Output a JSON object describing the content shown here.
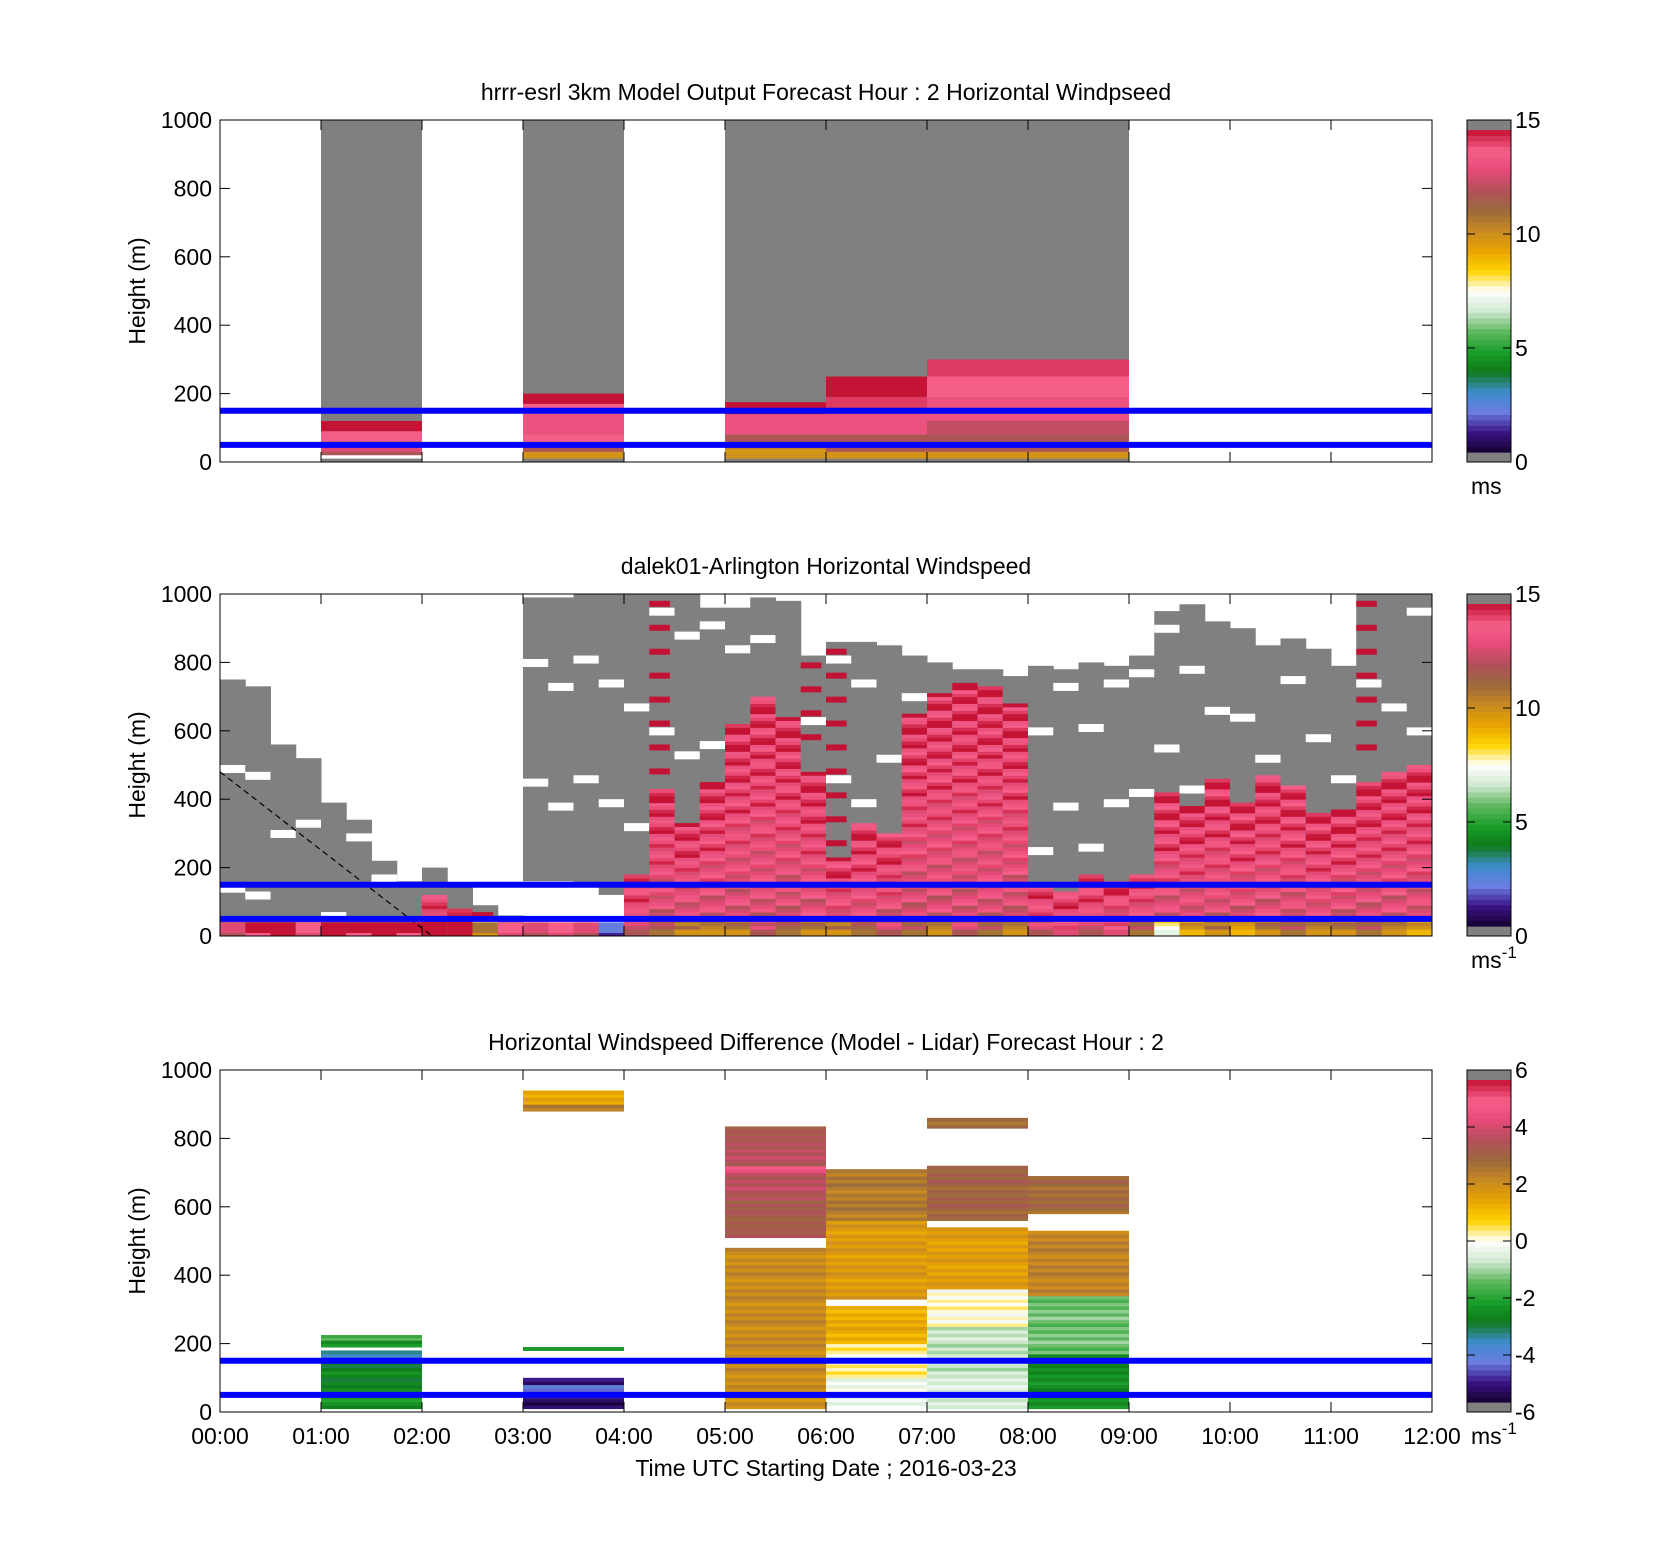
{
  "figure": {
    "xlabel": "Time UTC  Starting Date ; 2016-03-23"
  },
  "colors": {
    "reference_line": "#0000ff",
    "no_data": "#808080",
    "speed_colormap": [
      "#808080",
      "#14002e",
      "#3b1486",
      "#6b7de0",
      "#3d8ccb",
      "#0f7a1a",
      "#1a9e2a",
      "#5fb75f",
      "#cfe8cf",
      "#ffffff",
      "#ffd400",
      "#e8a400",
      "#c88a22",
      "#9b6a3d",
      "#b0505a",
      "#e64a78",
      "#f55f8a",
      "#c41234",
      "#808080"
    ],
    "diff_colormap": [
      "#808080",
      "#14002e",
      "#3b1486",
      "#6b7de0",
      "#3d8ccb",
      "#0f7a1a",
      "#1a9e2a",
      "#5fb75f",
      "#cfe8cf",
      "#ffffff",
      "#ffd400",
      "#e8a400",
      "#c88a22",
      "#9b6a3d",
      "#b0505a",
      "#e64a78",
      "#f55f8a",
      "#c41234",
      "#808080"
    ]
  },
  "chart_data": [
    {
      "type": "heatmap",
      "title": "hrrr-esrl 3km Model Output   Forecast Hour : 2 Horizontal Windpseed",
      "ylabel": "Height (m)",
      "xlabel": "",
      "x_ticks": [
        "00:00",
        "01:00",
        "02:00",
        "03:00",
        "04:00",
        "05:00",
        "06:00",
        "07:00",
        "08:00",
        "09:00",
        "10:00",
        "11:00",
        "12:00"
      ],
      "show_x_tick_labels": false,
      "xlim": [
        0,
        12
      ],
      "ylim": [
        0,
        1000
      ],
      "y_ticks": [
        0,
        200,
        400,
        600,
        800,
        1000
      ],
      "reference_lines_m": [
        50,
        150
      ],
      "colorbar": {
        "min": 0,
        "max": 15,
        "ticks": [
          0,
          5,
          10,
          15
        ],
        "unit": "ms",
        "unit_superscript": ""
      },
      "blocks": [
        {
          "t0": 1,
          "t1": 2,
          "top": 1000,
          "profile": [
            [
              0,
              10,
              0
            ],
            [
              10,
              20,
              -1
            ],
            [
              20,
              30,
              12
            ],
            [
              30,
              60,
              13
            ],
            [
              60,
              90,
              14
            ],
            [
              90,
              120,
              15
            ]
          ]
        },
        {
          "t0": 3,
          "t1": 4,
          "top": 1000,
          "profile": [
            [
              0,
              10,
              0
            ],
            [
              10,
              30,
              10
            ],
            [
              30,
              50,
              12
            ],
            [
              50,
              80,
              14
            ],
            [
              80,
              140,
              13.5
            ],
            [
              140,
              170,
              14
            ],
            [
              170,
              200,
              15
            ]
          ]
        },
        {
          "t0": 5,
          "t1": 6,
          "top": 1000,
          "profile": [
            [
              0,
              10,
              0
            ],
            [
              10,
              20,
              10
            ],
            [
              20,
              40,
              10
            ],
            [
              40,
              80,
              12
            ],
            [
              80,
              140,
              13.5
            ],
            [
              140,
              175,
              15
            ]
          ]
        },
        {
          "t0": 6,
          "t1": 7,
          "top": 1000,
          "profile": [
            [
              0,
              10,
              0
            ],
            [
              10,
              30,
              10
            ],
            [
              30,
              80,
              12
            ],
            [
              80,
              140,
              13.5
            ],
            [
              140,
              190,
              14.5
            ],
            [
              190,
              250,
              15
            ]
          ]
        },
        {
          "t0": 7,
          "t1": 8,
          "top": 1000,
          "profile": [
            [
              0,
              10,
              0
            ],
            [
              10,
              30,
              10
            ],
            [
              30,
              80,
              12
            ],
            [
              80,
              120,
              12.5
            ],
            [
              120,
              190,
              13.5
            ],
            [
              190,
              250,
              14
            ],
            [
              250,
              300,
              14.5
            ]
          ]
        },
        {
          "t0": 8,
          "t1": 9,
          "top": 1000,
          "profile": [
            [
              0,
              10,
              0
            ],
            [
              10,
              30,
              10
            ],
            [
              30,
              80,
              12
            ],
            [
              80,
              120,
              12.5
            ],
            [
              120,
              190,
              13.5
            ],
            [
              190,
              250,
              14
            ],
            [
              250,
              300,
              14.5
            ]
          ]
        }
      ]
    },
    {
      "type": "heatmap",
      "title": "dalek01-Arlington  Horizontal Windspeed",
      "ylabel": "Height (m)",
      "xlabel": "",
      "x_ticks": [
        "00:00",
        "01:00",
        "02:00",
        "03:00",
        "04:00",
        "05:00",
        "06:00",
        "07:00",
        "08:00",
        "09:00",
        "10:00",
        "11:00",
        "12:00"
      ],
      "show_x_tick_labels": false,
      "xlim": [
        0,
        12
      ],
      "ylim": [
        0,
        1000
      ],
      "y_ticks": [
        0,
        200,
        400,
        600,
        800,
        1000
      ],
      "reference_lines_m": [
        50,
        150
      ],
      "colorbar": {
        "min": 0,
        "max": 15,
        "ticks": [
          0,
          5,
          10,
          15
        ],
        "unit": "ms",
        "unit_superscript": "-1"
      },
      "boundary_layer_line": {
        "x": [
          0,
          2.1
        ],
        "y": [
          480,
          0
        ]
      },
      "profile_step_hours": 0.25,
      "columns": [
        {
          "t": 0.0,
          "top": 750,
          "cut": 0,
          "core": 0,
          "low": 12
        },
        {
          "t": 0.25,
          "top": 730,
          "cut": 0,
          "core": 0,
          "low": 14
        },
        {
          "t": 0.5,
          "top": 560,
          "cut": 0,
          "core": 0,
          "low": 15
        },
        {
          "t": 0.75,
          "top": 520,
          "cut": 0,
          "core": 0,
          "low": 13
        },
        {
          "t": 1.0,
          "top": 390,
          "cut": 0,
          "core": 0,
          "low": 15
        },
        {
          "t": 1.25,
          "top": 340,
          "cut": 0,
          "core": 0,
          "low": 14
        },
        {
          "t": 1.5,
          "top": 220,
          "cut": 0,
          "core": 0,
          "low": 15
        },
        {
          "t": 1.75,
          "top": 160,
          "cut": 0,
          "core": 0,
          "low": 14
        },
        {
          "t": 2.0,
          "top": 200,
          "cut": 0,
          "core": 120,
          "low": 15
        },
        {
          "t": 2.25,
          "top": 150,
          "cut": 0,
          "core": 80,
          "low": 15
        },
        {
          "t": 2.5,
          "top": 90,
          "cut": 0,
          "core": 0,
          "low": 10
        },
        {
          "t": 2.75,
          "top": 60,
          "cut": 0,
          "core": 0,
          "low": 13
        },
        {
          "t": 3.0,
          "top": 990,
          "cut": 160,
          "core": 0,
          "low": 12
        },
        {
          "t": 3.25,
          "top": 990,
          "cut": 160,
          "core": 0,
          "low": 13
        },
        {
          "t": 3.5,
          "top": 1000,
          "cut": 150,
          "core": 0,
          "low": 12
        },
        {
          "t": 3.75,
          "top": 1000,
          "cut": 120,
          "core": 0,
          "low": 1
        },
        {
          "t": 4.0,
          "top": 1000,
          "cut": 0,
          "core": 180,
          "low": 12
        },
        {
          "t": 4.25,
          "top": 1000,
          "cut": 0,
          "core": 430,
          "low": 11
        },
        {
          "t": 4.5,
          "top": 1000,
          "cut": 0,
          "core": 330,
          "low": 10
        },
        {
          "t": 4.75,
          "top": 960,
          "cut": 0,
          "core": 450,
          "low": 10
        },
        {
          "t": 5.0,
          "top": 960,
          "cut": 0,
          "core": 620,
          "low": 10
        },
        {
          "t": 5.25,
          "top": 990,
          "cut": 0,
          "core": 700,
          "low": 12
        },
        {
          "t": 5.5,
          "top": 980,
          "cut": 0,
          "core": 640,
          "low": 11
        },
        {
          "t": 5.75,
          "top": 820,
          "cut": 0,
          "core": 480,
          "low": 10
        },
        {
          "t": 6.0,
          "top": 860,
          "cut": 0,
          "core": 230,
          "low": 10
        },
        {
          "t": 6.25,
          "top": 860,
          "cut": 0,
          "core": 330,
          "low": 11
        },
        {
          "t": 6.5,
          "top": 850,
          "cut": 0,
          "core": 300,
          "low": 12
        },
        {
          "t": 6.75,
          "top": 820,
          "cut": 0,
          "core": 650,
          "low": 11
        },
        {
          "t": 7.0,
          "top": 800,
          "cut": 0,
          "core": 710,
          "low": 10
        },
        {
          "t": 7.25,
          "top": 780,
          "cut": 0,
          "core": 740,
          "low": 12
        },
        {
          "t": 7.5,
          "top": 780,
          "cut": 0,
          "core": 730,
          "low": 11
        },
        {
          "t": 7.75,
          "top": 760,
          "cut": 0,
          "core": 680,
          "low": 10
        },
        {
          "t": 8.0,
          "top": 790,
          "cut": 0,
          "core": 150,
          "low": 12
        },
        {
          "t": 8.25,
          "top": 780,
          "cut": 0,
          "core": 130,
          "low": 13
        },
        {
          "t": 8.5,
          "top": 800,
          "cut": 0,
          "core": 180,
          "low": 12
        },
        {
          "t": 8.75,
          "top": 790,
          "cut": 0,
          "core": 160,
          "low": 13
        },
        {
          "t": 9.0,
          "top": 820,
          "cut": 0,
          "core": 180,
          "low": 11
        },
        {
          "t": 9.25,
          "top": 950,
          "cut": 0,
          "core": 420,
          "low": 7
        },
        {
          "t": 9.5,
          "top": 970,
          "cut": 0,
          "core": 380,
          "low": 9
        },
        {
          "t": 9.75,
          "top": 920,
          "cut": 0,
          "core": 460,
          "low": 10
        },
        {
          "t": 10.0,
          "top": 900,
          "cut": 0,
          "core": 390,
          "low": 9
        },
        {
          "t": 10.25,
          "top": 850,
          "cut": 0,
          "core": 470,
          "low": 10
        },
        {
          "t": 10.5,
          "top": 870,
          "cut": 0,
          "core": 440,
          "low": 11
        },
        {
          "t": 10.75,
          "top": 840,
          "cut": 0,
          "core": 360,
          "low": 10
        },
        {
          "t": 11.0,
          "top": 790,
          "cut": 0,
          "core": 370,
          "low": 10
        },
        {
          "t": 11.25,
          "top": 1000,
          "cut": 0,
          "core": 450,
          "low": 11
        },
        {
          "t": 11.5,
          "top": 1000,
          "cut": 0,
          "core": 480,
          "low": 10
        },
        {
          "t": 11.75,
          "top": 1000,
          "cut": 0,
          "core": 500,
          "low": 9
        }
      ]
    },
    {
      "type": "heatmap",
      "title": "Horizontal Windspeed Difference (Model - Lidar) Forecast Hour : 2",
      "ylabel": "Height (m)",
      "xlabel": "Time UTC  Starting Date ; 2016-03-23",
      "x_ticks": [
        "00:00",
        "01:00",
        "02:00",
        "03:00",
        "04:00",
        "05:00",
        "06:00",
        "07:00",
        "08:00",
        "09:00",
        "10:00",
        "11:00",
        "12:00"
      ],
      "show_x_tick_labels": true,
      "xlim": [
        0,
        12
      ],
      "ylim": [
        0,
        1000
      ],
      "y_ticks": [
        0,
        200,
        400,
        600,
        800,
        1000
      ],
      "reference_lines_m": [
        50,
        150
      ],
      "colorbar": {
        "min": -6,
        "max": 6,
        "ticks": [
          -6,
          -4,
          -2,
          0,
          2,
          4,
          6
        ],
        "unit": "ms",
        "unit_superscript": "-1"
      },
      "blocks": [
        {
          "t0": 1,
          "t1": 2,
          "segments": [
            [
              10,
              60,
              -2.5
            ],
            [
              60,
              130,
              -2.8
            ],
            [
              130,
              160,
              -3.2
            ],
            [
              160,
              180,
              -3.6
            ],
            [
              190,
              210,
              -2.6
            ],
            [
              210,
              225,
              -1.6
            ]
          ]
        },
        {
          "t0": 3,
          "t1": 4,
          "segments": [
            [
              10,
              60,
              -5.5
            ],
            [
              60,
              80,
              -4.5
            ],
            [
              80,
              100,
              -5.2
            ],
            [
              180,
              190,
              -2.6
            ],
            [
              880,
              900,
              2.4
            ],
            [
              900,
              940,
              1.6
            ]
          ]
        },
        {
          "t0": 5,
          "t1": 6,
          "segments": [
            [
              10,
              480,
              2.2
            ],
            [
              510,
              620,
              3.4
            ],
            [
              620,
              700,
              3.8
            ],
            [
              700,
              720,
              4.8
            ],
            [
              720,
              800,
              3.8
            ],
            [
              800,
              835,
              3.6
            ]
          ]
        },
        {
          "t0": 6,
          "t1": 7,
          "segments": [
            [
              10,
              100,
              -0.3
            ],
            [
              100,
              200,
              0.3
            ],
            [
              200,
              310,
              1.4
            ],
            [
              330,
              560,
              1.8
            ],
            [
              560,
              710,
              2.6
            ]
          ]
        },
        {
          "t0": 7,
          "t1": 8,
          "segments": [
            [
              10,
              120,
              -0.6
            ],
            [
              120,
              250,
              -0.8
            ],
            [
              250,
              360,
              0.1
            ],
            [
              360,
              540,
              1.7
            ],
            [
              560,
              720,
              3.2
            ],
            [
              830,
              860,
              2.8
            ]
          ]
        },
        {
          "t0": 8,
          "t1": 9,
          "segments": [
            [
              10,
              170,
              -2.6
            ],
            [
              170,
              340,
              -1.4
            ],
            [
              340,
              530,
              2.4
            ],
            [
              580,
              690,
              3.0
            ]
          ]
        }
      ]
    }
  ]
}
